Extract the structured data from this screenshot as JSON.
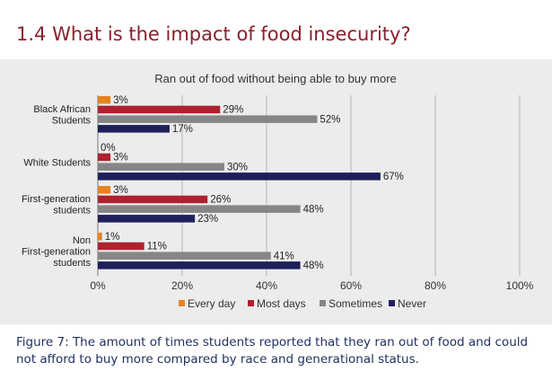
{
  "page_title": "1.4 What is the impact of food insecurity?",
  "caption": "Figure 7: The amount of times students reported that they ran out of food and could not afford to buy more compared  by race and generational status.",
  "colors": {
    "every_day": "#e8821e",
    "most_days": "#b0212f",
    "sometimes": "#868686",
    "never": "#1f1f5c",
    "panel": "#ececec",
    "title": "#8b1e2d"
  },
  "chart_data": {
    "type": "bar",
    "orientation": "horizontal",
    "title": "Ran out of food without being able to buy more",
    "categories": [
      [
        "Black African",
        "Students"
      ],
      [
        "White Students"
      ],
      [
        "First-generation",
        "students"
      ],
      [
        "Non",
        "First-generation",
        "students"
      ]
    ],
    "series": [
      {
        "name": "Every day",
        "values": [
          3,
          0,
          3,
          1
        ],
        "labels": [
          "3%",
          "0%",
          "3%",
          "1%"
        ]
      },
      {
        "name": "Most days",
        "values": [
          29,
          3,
          26,
          11
        ],
        "labels": [
          "29%",
          "3%",
          "26%",
          "11%"
        ]
      },
      {
        "name": "Sometimes",
        "values": [
          52,
          30,
          48,
          41
        ],
        "labels": [
          "52%",
          "30%",
          "48%",
          "41%"
        ]
      },
      {
        "name": "Never",
        "values": [
          17,
          67,
          23,
          48
        ],
        "labels": [
          "17%",
          "67%",
          "23%",
          "48%"
        ]
      }
    ],
    "xlim": [
      0,
      100
    ],
    "xticks": [
      0,
      20,
      40,
      60,
      80,
      100
    ],
    "xtick_labels": [
      "0%",
      "20%",
      "40%",
      "60%",
      "80%",
      "100%"
    ],
    "grid": true,
    "legend_position": "bottom"
  }
}
